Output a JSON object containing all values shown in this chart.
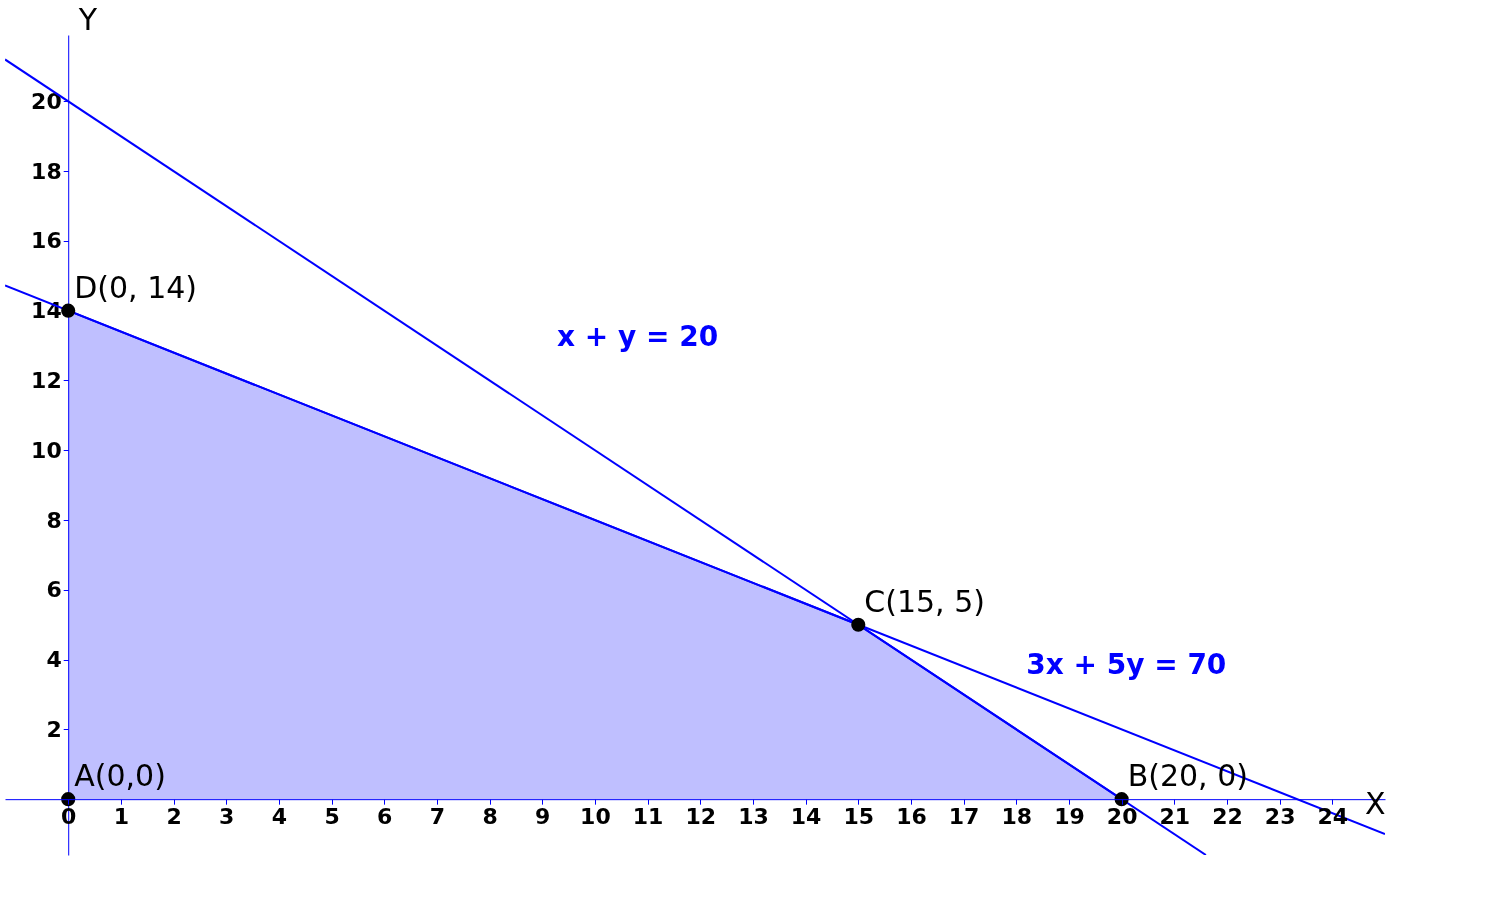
{
  "chart_data": {
    "type": "line",
    "xlabel": "X",
    "ylabel": "Y",
    "xlim": [
      -1.2,
      25
    ],
    "ylim": [
      -1.6,
      21.9
    ],
    "xticks": [
      0,
      1,
      2,
      3,
      4,
      5,
      6,
      7,
      8,
      9,
      10,
      11,
      12,
      13,
      14,
      15,
      16,
      17,
      18,
      19,
      20,
      21,
      22,
      23,
      24
    ],
    "yticks": [
      2,
      4,
      6,
      8,
      10,
      12,
      14,
      16,
      18,
      20
    ],
    "grid": false,
    "line_style": "solid",
    "series": [
      {
        "color": "#0000ff",
        "x": [
          -1.2,
          21.6
        ],
        "values": [
          21.2,
          -1.6
        ]
      },
      {
        "color": "#0000ff",
        "x": [
          -1.2,
          25
        ],
        "values": [
          14.72,
          -1.0
        ]
      },
      {
        "type": "area",
        "color": "#0000ff",
        "x": [
          0,
          15,
          20
        ],
        "values": [
          14,
          5,
          0
        ]
      },
      {
        "type": "scatter",
        "marker": "circle",
        "color": "#000000",
        "x": [
          0,
          20,
          15,
          0
        ],
        "values": [
          0,
          0,
          5,
          14
        ]
      }
    ],
    "annotations": [
      {
        "text": "A(0,0)",
        "x": 0,
        "y": 0
      },
      {
        "text": "B(20, 0)",
        "x": 20,
        "y": 0
      },
      {
        "text": "C(15, 5)",
        "x": 15,
        "y": 5
      },
      {
        "text": "D(0, 14)",
        "x": 0,
        "y": 14
      },
      "x + y = 20",
      "3x + 5y = 70"
    ]
  }
}
